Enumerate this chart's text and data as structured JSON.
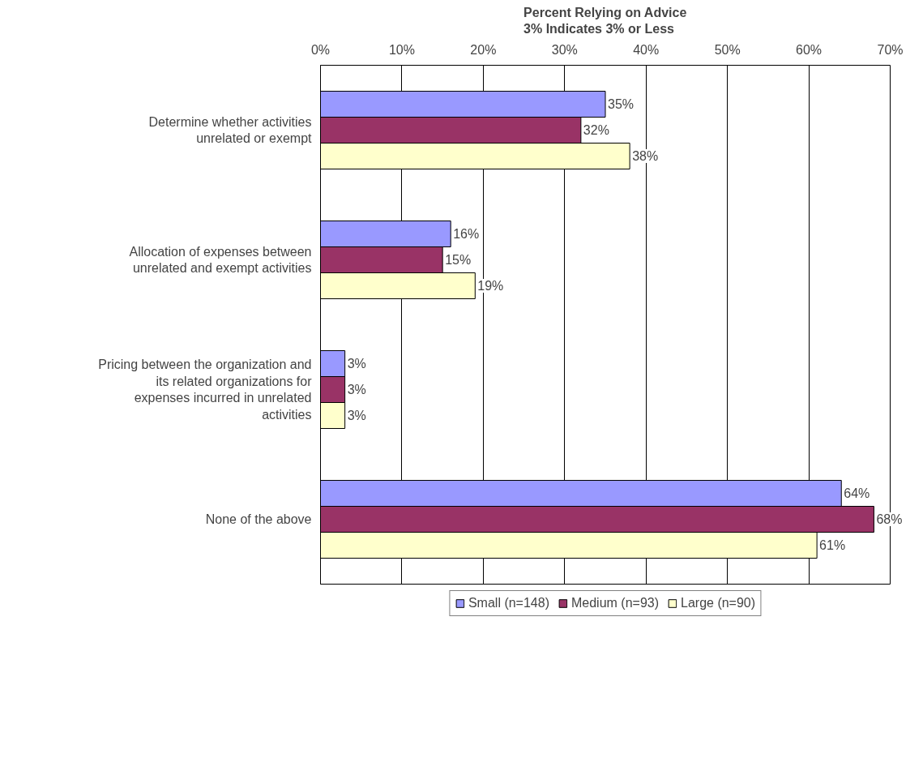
{
  "chart_data": {
    "type": "bar",
    "orientation": "horizontal",
    "title": "Percent Relying on Advice\n3% Indicates 3% or Less",
    "categories": [
      "Determine whether activities unrelated or exempt",
      "Allocation of expenses between unrelated and exempt activities",
      "Pricing between the organization and its related organizations for expenses incurred in unrelated activities",
      "None of the above"
    ],
    "series": [
      {
        "name": "Small (n=148)",
        "color": "#9999ff",
        "values": [
          35,
          16,
          3,
          64
        ],
        "value_labels": [
          "35%",
          "16%",
          "3%",
          "64%"
        ]
      },
      {
        "name": "Medium (n=93)",
        "color": "#993366",
        "values": [
          32,
          15,
          3,
          68
        ],
        "value_labels": [
          "32%",
          "15%",
          "3%",
          "68%"
        ]
      },
      {
        "name": "Large (n=90)",
        "color": "#ffffcc",
        "values": [
          38,
          19,
          3,
          61
        ],
        "value_labels": [
          "38%",
          "19%",
          "3%",
          "61%"
        ]
      }
    ],
    "xlim": [
      0,
      70
    ],
    "xticks": [
      {
        "value": 0,
        "label": "0%"
      },
      {
        "value": 10,
        "label": "10%"
      },
      {
        "value": 20,
        "label": "20%"
      },
      {
        "value": 30,
        "label": "30%"
      },
      {
        "value": 40,
        "label": "40%"
      },
      {
        "value": 50,
        "label": "50%"
      },
      {
        "value": 60,
        "label": "60%"
      },
      {
        "value": 70,
        "label": "70%"
      }
    ],
    "grid": "x",
    "legend": "bottom"
  }
}
